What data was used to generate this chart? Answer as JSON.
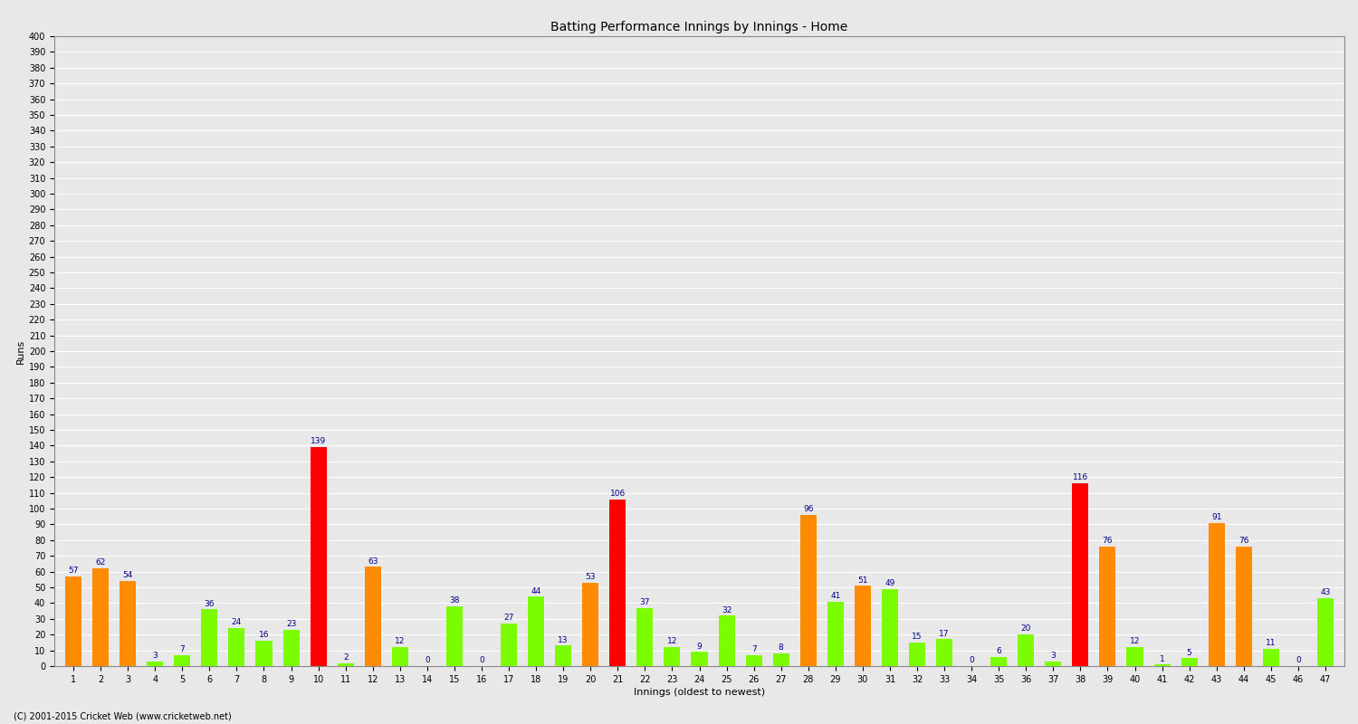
{
  "title": "Batting Performance Innings by Innings - Home",
  "xlabel": "Innings (oldest to newest)",
  "ylabel": "Runs",
  "innings": [
    1,
    2,
    3,
    4,
    5,
    6,
    7,
    8,
    9,
    10,
    11,
    12,
    13,
    14,
    15,
    16,
    17,
    18,
    19,
    20,
    21,
    22,
    23,
    24,
    25,
    26,
    27,
    28,
    29,
    30,
    31,
    32,
    33,
    34,
    35,
    36,
    37,
    38,
    39,
    40,
    41,
    42,
    43,
    44,
    45,
    46,
    47
  ],
  "values": [
    57,
    62,
    54,
    3,
    7,
    36,
    24,
    16,
    23,
    139,
    2,
    63,
    12,
    0,
    38,
    0,
    27,
    44,
    13,
    53,
    106,
    37,
    12,
    9,
    32,
    7,
    8,
    96,
    41,
    51,
    49,
    15,
    17,
    0,
    6,
    20,
    3,
    116,
    76,
    12,
    1,
    5,
    91,
    76,
    11,
    0,
    43
  ],
  "colors": [
    "#ff8c00",
    "#ff8c00",
    "#ff8c00",
    "#7cfc00",
    "#7cfc00",
    "#7cfc00",
    "#7cfc00",
    "#7cfc00",
    "#7cfc00",
    "#ff0000",
    "#7cfc00",
    "#ff8c00",
    "#7cfc00",
    "#7cfc00",
    "#7cfc00",
    "#7cfc00",
    "#7cfc00",
    "#7cfc00",
    "#7cfc00",
    "#ff8c00",
    "#ff0000",
    "#7cfc00",
    "#7cfc00",
    "#7cfc00",
    "#7cfc00",
    "#7cfc00",
    "#7cfc00",
    "#ff8c00",
    "#7cfc00",
    "#ff8c00",
    "#7cfc00",
    "#7cfc00",
    "#7cfc00",
    "#7cfc00",
    "#7cfc00",
    "#7cfc00",
    "#7cfc00",
    "#ff0000",
    "#ff8c00",
    "#7cfc00",
    "#7cfc00",
    "#7cfc00",
    "#ff8c00",
    "#ff8c00",
    "#7cfc00",
    "#7cfc00",
    "#7cfc00"
  ],
  "ylim": [
    0,
    400
  ],
  "yticks": [
    0,
    10,
    20,
    30,
    40,
    50,
    60,
    70,
    80,
    90,
    100,
    110,
    120,
    130,
    140,
    150,
    160,
    170,
    180,
    190,
    200,
    210,
    220,
    230,
    240,
    250,
    260,
    270,
    280,
    290,
    300,
    310,
    320,
    330,
    340,
    350,
    360,
    370,
    380,
    390,
    400
  ],
  "background_color": "#e8e8e8",
  "grid_color": "#ffffff",
  "label_color": "#00008b",
  "label_fontsize": 6.5,
  "axis_label_fontsize": 8,
  "tick_fontsize": 7,
  "footer": "(C) 2001-2015 Cricket Web (www.cricketweb.net)"
}
